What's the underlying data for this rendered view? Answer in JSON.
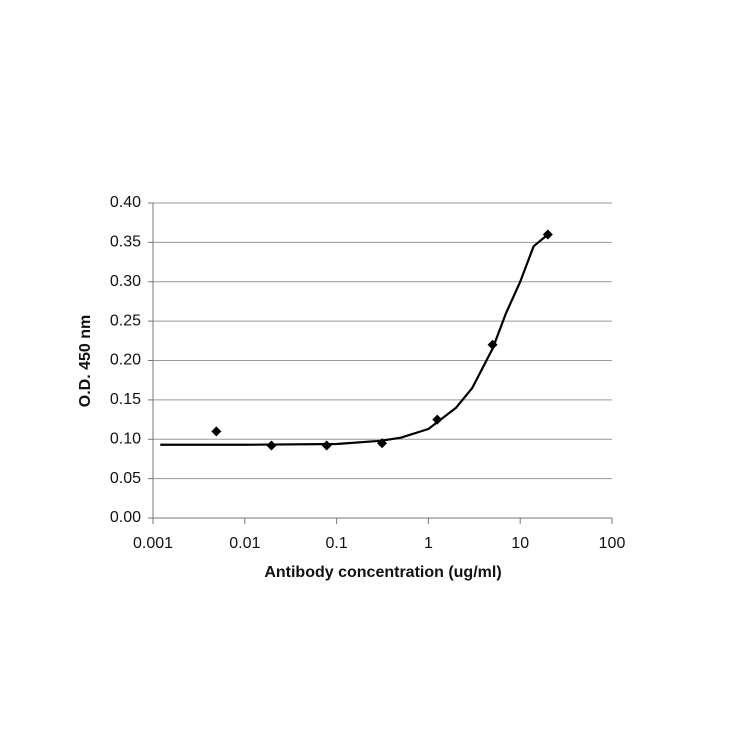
{
  "chart_data": {
    "type": "scatter",
    "x_label": "Antibody concentration (ug/ml)",
    "y_label": "O.D. 450 nm",
    "x_log": true,
    "xlim": [
      0.001,
      100
    ],
    "xticks": [
      0.001,
      0.01,
      0.1,
      1,
      10,
      100
    ],
    "ylim": [
      0,
      0.4
    ],
    "yticks": [
      {
        "value": 0,
        "label": "0.00"
      },
      {
        "value": 0.05,
        "label": "0.05"
      },
      {
        "value": 0.1,
        "label": "0.10"
      },
      {
        "value": 0.15,
        "label": "0.15"
      },
      {
        "value": 0.2,
        "label": "0.20"
      },
      {
        "value": 0.25,
        "label": "0.25"
      },
      {
        "value": 0.3,
        "label": "0.30"
      },
      {
        "value": 0.35,
        "label": "0.35"
      },
      {
        "value": 0.4,
        "label": "0.40"
      }
    ],
    "grid": true,
    "series": [
      {
        "type": "scatter",
        "marker": "diamond",
        "color": "#000000",
        "x": [
          0.0049,
          0.0195,
          0.078,
          0.3125,
          1.25,
          5,
          20
        ],
        "values": [
          0.11,
          0.092,
          0.092,
          0.095,
          0.125,
          0.22,
          0.36
        ]
      },
      {
        "type": "line",
        "color": "#000000",
        "x": [
          0.0012,
          0.01,
          0.1,
          0.3,
          0.5,
          1,
          2,
          3,
          5,
          7,
          10,
          14,
          20
        ],
        "values": [
          0.093,
          0.093,
          0.094,
          0.098,
          0.102,
          0.113,
          0.14,
          0.165,
          0.215,
          0.26,
          0.3,
          0.345,
          0.36
        ]
      }
    ]
  }
}
